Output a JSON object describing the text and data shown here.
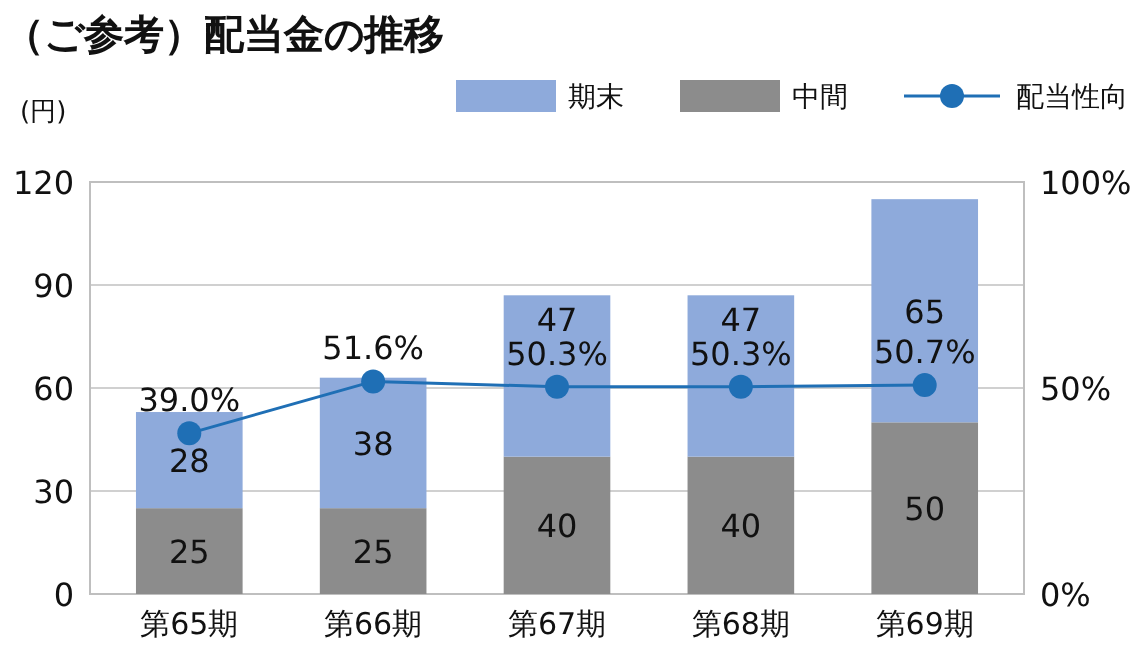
{
  "chart_data": {
    "type": "bar",
    "title": "（ご参考）配当金の推移",
    "ylabel": "(円)",
    "categories": [
      "第65期",
      "第66期",
      "第67期",
      "第68期",
      "第69期"
    ],
    "stacked": true,
    "series": [
      {
        "name": "中間",
        "color": "#8c8c8c",
        "values": [
          25,
          25,
          40,
          40,
          50
        ],
        "value_labels": [
          "25",
          "25",
          "40",
          "40",
          "50"
        ]
      },
      {
        "name": "期末",
        "color": "#8eaadb",
        "values": [
          28,
          38,
          47,
          47,
          65
        ],
        "value_labels": [
          "28",
          "38",
          "47",
          "47",
          "65"
        ]
      },
      {
        "name": "配当性向",
        "type": "line",
        "axis": "y2",
        "color": "#1f6fb5",
        "values": [
          39.0,
          51.6,
          50.3,
          50.3,
          50.7
        ],
        "value_labels": [
          "39.0%",
          "51.6%",
          "50.3%",
          "50.3%",
          "50.7%"
        ]
      }
    ],
    "ylim": [
      0,
      120
    ],
    "yticks": [
      0,
      30,
      60,
      90,
      120
    ],
    "y2lim": [
      0,
      100
    ],
    "y2ticks": [
      {
        "value": 0,
        "label": "0%"
      },
      {
        "value": 50,
        "label": "50%"
      },
      {
        "value": 100,
        "label": "100%"
      }
    ],
    "grid": "y",
    "legend": "top right",
    "marker": "circle"
  }
}
